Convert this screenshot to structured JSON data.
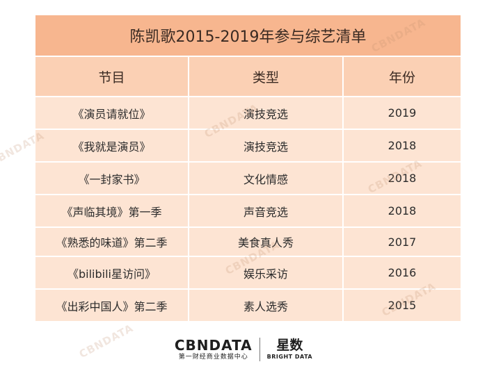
{
  "title": "陈凯歌2015-2019年参与综艺清单",
  "headers": [
    "节目",
    "类型",
    "年份"
  ],
  "rows": [
    {
      "show": "《演员请就位》",
      "type": "演技竞选",
      "year": "2019"
    },
    {
      "show": "《我就是演员》",
      "type": "演技竞选",
      "year": "2018"
    },
    {
      "show": "《一封家书》",
      "type": "文化情感",
      "year": "2018"
    },
    {
      "show": "《声临其境》第一季",
      "type": "声音竞选",
      "year": "2018"
    },
    {
      "show": "《熟悉的味道》第二季",
      "type": "美食真人秀",
      "year": "2017"
    },
    {
      "show": "《bilibili星访问》",
      "type": "娱乐采访",
      "year": "2016"
    },
    {
      "show": "《出彩中国人》第二季",
      "type": "素人选秀",
      "year": "2015"
    }
  ],
  "footer": {
    "brand_name": "CBNDATA",
    "brand_sub": "第一财经商业数据中心",
    "partner_cn": "星数",
    "partner_en": "BRIGHT DATA"
  },
  "watermark": "CBNDATA",
  "colors": {
    "title_bg": "#f7b68f",
    "header_bg": "#fbd0b4",
    "row_bg": "#fde4d3"
  }
}
